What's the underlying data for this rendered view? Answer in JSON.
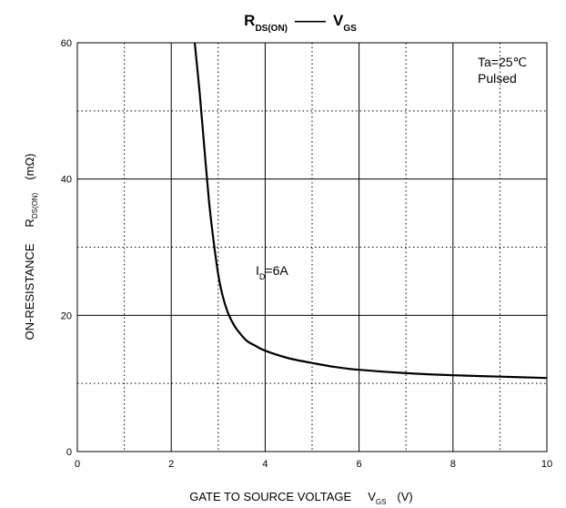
{
  "chart_data": {
    "type": "line",
    "title": {
      "left": {
        "main": "R",
        "sub": "DS(ON)"
      },
      "separator": "——",
      "right": {
        "main": "V",
        "sub": "GS"
      }
    },
    "xlabel": {
      "main": "GATE TO SOURCE VOLTAGE",
      "symbol": "V",
      "symbol_sub": "GS",
      "unit": "(V)"
    },
    "ylabel": {
      "main": "ON-RESISTANCE",
      "symbol": "R",
      "symbol_sub": "DS(ON)",
      "unit": "(mΩ)"
    },
    "xlim": [
      0,
      10
    ],
    "ylim": [
      0,
      60
    ],
    "x_major_ticks": [
      0,
      2,
      4,
      6,
      8,
      10
    ],
    "x_tick_labels": [
      "0",
      "2",
      "4",
      "6",
      "8",
      "10"
    ],
    "x_minor_gridlines": [
      1,
      3,
      5,
      7,
      9
    ],
    "y_major_ticks": [
      0,
      20,
      40,
      60
    ],
    "y_tick_labels": [
      "0",
      "20",
      "40",
      "60"
    ],
    "y_minor_gridlines": [
      10,
      30,
      50
    ],
    "grid": true,
    "conditions": [
      "Ta=25℃",
      "Pulsed"
    ],
    "series": [
      {
        "label": {
          "main": "I",
          "sub": "D",
          "rest": "=6A"
        },
        "x": [
          2.5,
          2.6,
          2.7,
          2.8,
          2.9,
          3.0,
          3.1,
          3.2,
          3.3,
          3.4,
          3.6,
          3.8,
          4.0,
          4.5,
          5.0,
          5.5,
          6.0,
          7.0,
          8.0,
          9.0,
          10.0
        ],
        "y": [
          60,
          53,
          45,
          37,
          31,
          26,
          22.7,
          20.5,
          19.0,
          17.9,
          16.3,
          15.5,
          14.8,
          13.7,
          13.0,
          12.4,
          12.0,
          11.5,
          11.2,
          11.0,
          10.8
        ]
      }
    ]
  }
}
